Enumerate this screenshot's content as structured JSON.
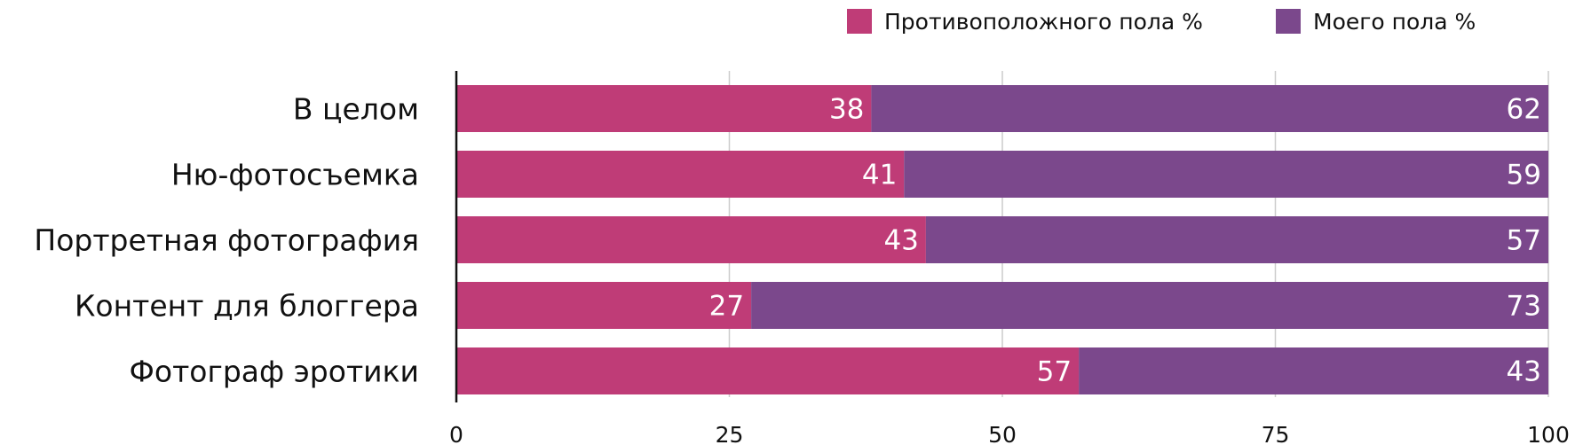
{
  "chart_data": {
    "type": "bar",
    "orientation": "horizontal",
    "stacked": true,
    "categories": [
      "В целом",
      "Ню-фотосъемка",
      "Портретная фотография",
      "Контент для блоггера",
      "Фотограф эротики"
    ],
    "series": [
      {
        "name": "Противоположного пола %",
        "color": "#bf3c77",
        "values": [
          38,
          41,
          43,
          27,
          57
        ]
      },
      {
        "name": "Моего пола %",
        "color": "#7b488c",
        "values": [
          62,
          59,
          57,
          73,
          43
        ]
      }
    ],
    "xlim": [
      0,
      100
    ],
    "xticks": [
      "0",
      "25",
      "50",
      "75",
      "100"
    ],
    "grid": true,
    "legend": "top-right",
    "data_labels": true
  }
}
